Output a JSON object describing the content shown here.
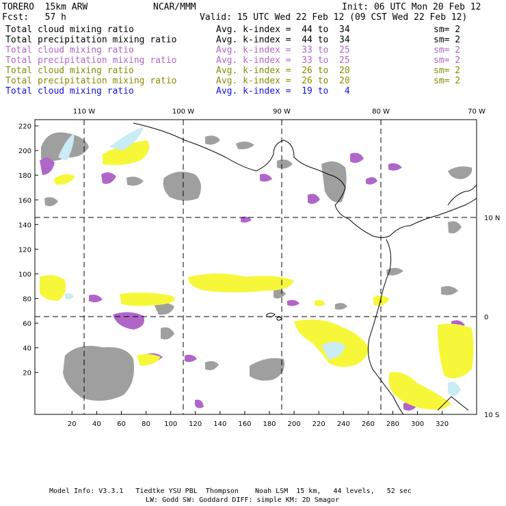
{
  "header": {
    "model": "TORERO  15km ARW",
    "org": "NCAR/MMM",
    "init": "Init: 06 UTC Mon 20 Feb 12",
    "fcst": "Fcst:   57 h",
    "valid": "Valid: 15 UTC Wed 22 Feb 12 (09 CST Wed 22 Feb 12)"
  },
  "legend": [
    {
      "field": "Total cloud mixing ratio",
      "kindex": "Avg. k-index =  44 to  34",
      "sm": "sm= 2",
      "color": "#000000"
    },
    {
      "field": "Total precipitation mixing ratio",
      "kindex": "Avg. k-index =  44 to  34",
      "sm": "sm= 2",
      "color": "#000000"
    },
    {
      "field": "Total cloud mixing ratio",
      "kindex": "Avg. k-index =  33 to  25",
      "sm": "sm= 2",
      "color": "#b065c8"
    },
    {
      "field": "Total precipitation mixing ratio",
      "kindex": "Avg. k-index =  33 to  25",
      "sm": "sm= 2",
      "color": "#b065c8"
    },
    {
      "field": "Total cloud mixing ratio",
      "kindex": "Avg. k-index =  26 to  20",
      "sm": "sm= 2",
      "color": "#8c8a00"
    },
    {
      "field": "Total precipitation mixing ratio",
      "kindex": "Avg. k-index =  26 to  20",
      "sm": "sm= 2",
      "color": "#8c8a00"
    },
    {
      "field": "Total cloud mixing ratio",
      "kindex": "Avg. k-index =  19 to   4",
      "sm": "",
      "color": "#1010e0"
    }
  ],
  "map": {
    "lon_labels": [
      "110 W",
      "100 W",
      "90 W",
      "80 W",
      "70 W"
    ],
    "lat_labels": [
      "10 N",
      "0",
      "10 S"
    ],
    "x_ticks": [
      "20",
      "40",
      "60",
      "80",
      "100",
      "120",
      "140",
      "160",
      "180",
      "200",
      "220",
      "240",
      "260",
      "280",
      "300",
      "320"
    ],
    "y_ticks": [
      "20",
      "40",
      "60",
      "80",
      "100",
      "120",
      "140",
      "160",
      "180",
      "200",
      "220"
    ],
    "colors": {
      "gray_cloud": "#9a9a9a",
      "purple_cloud": "#b065c8",
      "yellow_cloud": "#f7f73a",
      "cyan_cloud": "#c9ecf5",
      "coast": "#000000"
    }
  },
  "footer": {
    "line1": "Model Info: V3.3.1   Tiedtke YSU PBL  Thompson    Noah LSM  15 km,   44 levels,   52 sec",
    "line2": "LW: Godd SW: Goddard DIFF: simple KM: 2D Smagor"
  }
}
